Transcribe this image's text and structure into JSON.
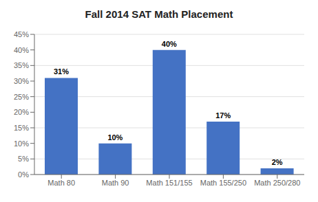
{
  "chart_data": {
    "type": "bar",
    "title": "Fall 2014 SAT Math Placement",
    "categories": [
      "Math 80",
      "Math 90",
      "Math 151/155",
      "Math 155/250",
      "Math 250/280"
    ],
    "values": [
      0.31,
      0.1,
      0.4,
      0.17,
      0.02
    ],
    "value_labels": [
      "31%",
      "10%",
      "40%",
      "17%",
      "2%"
    ],
    "data_labels": true,
    "color": "#4472C4",
    "ylim": [
      0,
      0.45
    ],
    "yticks": [
      {
        "value": 0.0,
        "label": "0%"
      },
      {
        "value": 0.05,
        "label": "5%"
      },
      {
        "value": 0.1,
        "label": "10%"
      },
      {
        "value": 0.15,
        "label": "15%"
      },
      {
        "value": 0.2,
        "label": "20%"
      },
      {
        "value": 0.25,
        "label": "25%"
      },
      {
        "value": 0.3,
        "label": "30%"
      },
      {
        "value": 0.35,
        "label": "35%"
      },
      {
        "value": 0.4,
        "label": "40%"
      },
      {
        "value": 0.45,
        "label": "45%"
      }
    ],
    "grid": true
  }
}
